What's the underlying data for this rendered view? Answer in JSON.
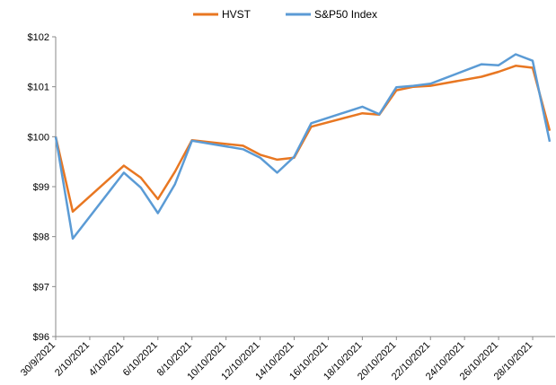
{
  "chart_data": {
    "type": "line",
    "x": [
      "30/9/2021",
      "1/10/2021",
      "4/10/2021",
      "5/10/2021",
      "6/10/2021",
      "7/10/2021",
      "8/10/2021",
      "11/10/2021",
      "12/10/2021",
      "13/10/2021",
      "14/10/2021",
      "15/10/2021",
      "18/10/2021",
      "19/10/2021",
      "20/10/2021",
      "21/10/2021",
      "22/10/2021",
      "25/10/2021",
      "26/10/2021",
      "27/10/2021",
      "28/10/2021",
      "29/10/2021"
    ],
    "series": [
      {
        "name": "HVST",
        "color": "#e87722",
        "values": [
          100,
          98.5,
          99.42,
          99.18,
          98.75,
          99.3,
          99.93,
          99.82,
          99.64,
          99.54,
          99.58,
          100.2,
          100.47,
          100.44,
          100.93,
          101.0,
          101.02,
          101.2,
          101.3,
          101.42,
          101.38,
          100.12
        ]
      },
      {
        "name": "S&P50 Index",
        "color": "#5b9bd5",
        "values": [
          100,
          97.96,
          99.28,
          98.98,
          98.47,
          99.05,
          99.92,
          99.75,
          99.58,
          99.28,
          99.6,
          100.27,
          100.6,
          100.45,
          100.99,
          101.02,
          101.06,
          101.45,
          101.43,
          101.65,
          101.52,
          99.9
        ]
      }
    ],
    "xlim": [
      "30/9/2021",
      "29/10/2021"
    ],
    "xticks": [
      "30/9/2021",
      "2/10/2021",
      "4/10/2021",
      "6/10/2021",
      "8/10/2021",
      "10/10/2021",
      "12/10/2021",
      "14/10/2021",
      "16/10/2021",
      "18/10/2021",
      "20/10/2021",
      "22/10/2021",
      "24/10/2021",
      "26/10/2021",
      "28/10/2021"
    ],
    "ylim": [
      96,
      102
    ],
    "yticks": [
      {
        "value": 96,
        "label": "$96"
      },
      {
        "value": 97,
        "label": "$97"
      },
      {
        "value": 98,
        "label": "$98"
      },
      {
        "value": 99,
        "label": "$99"
      },
      {
        "value": 100,
        "label": "$100"
      },
      {
        "value": 101,
        "label": "$101"
      },
      {
        "value": 102,
        "label": "$102"
      }
    ],
    "grid": false,
    "legend": "top"
  }
}
